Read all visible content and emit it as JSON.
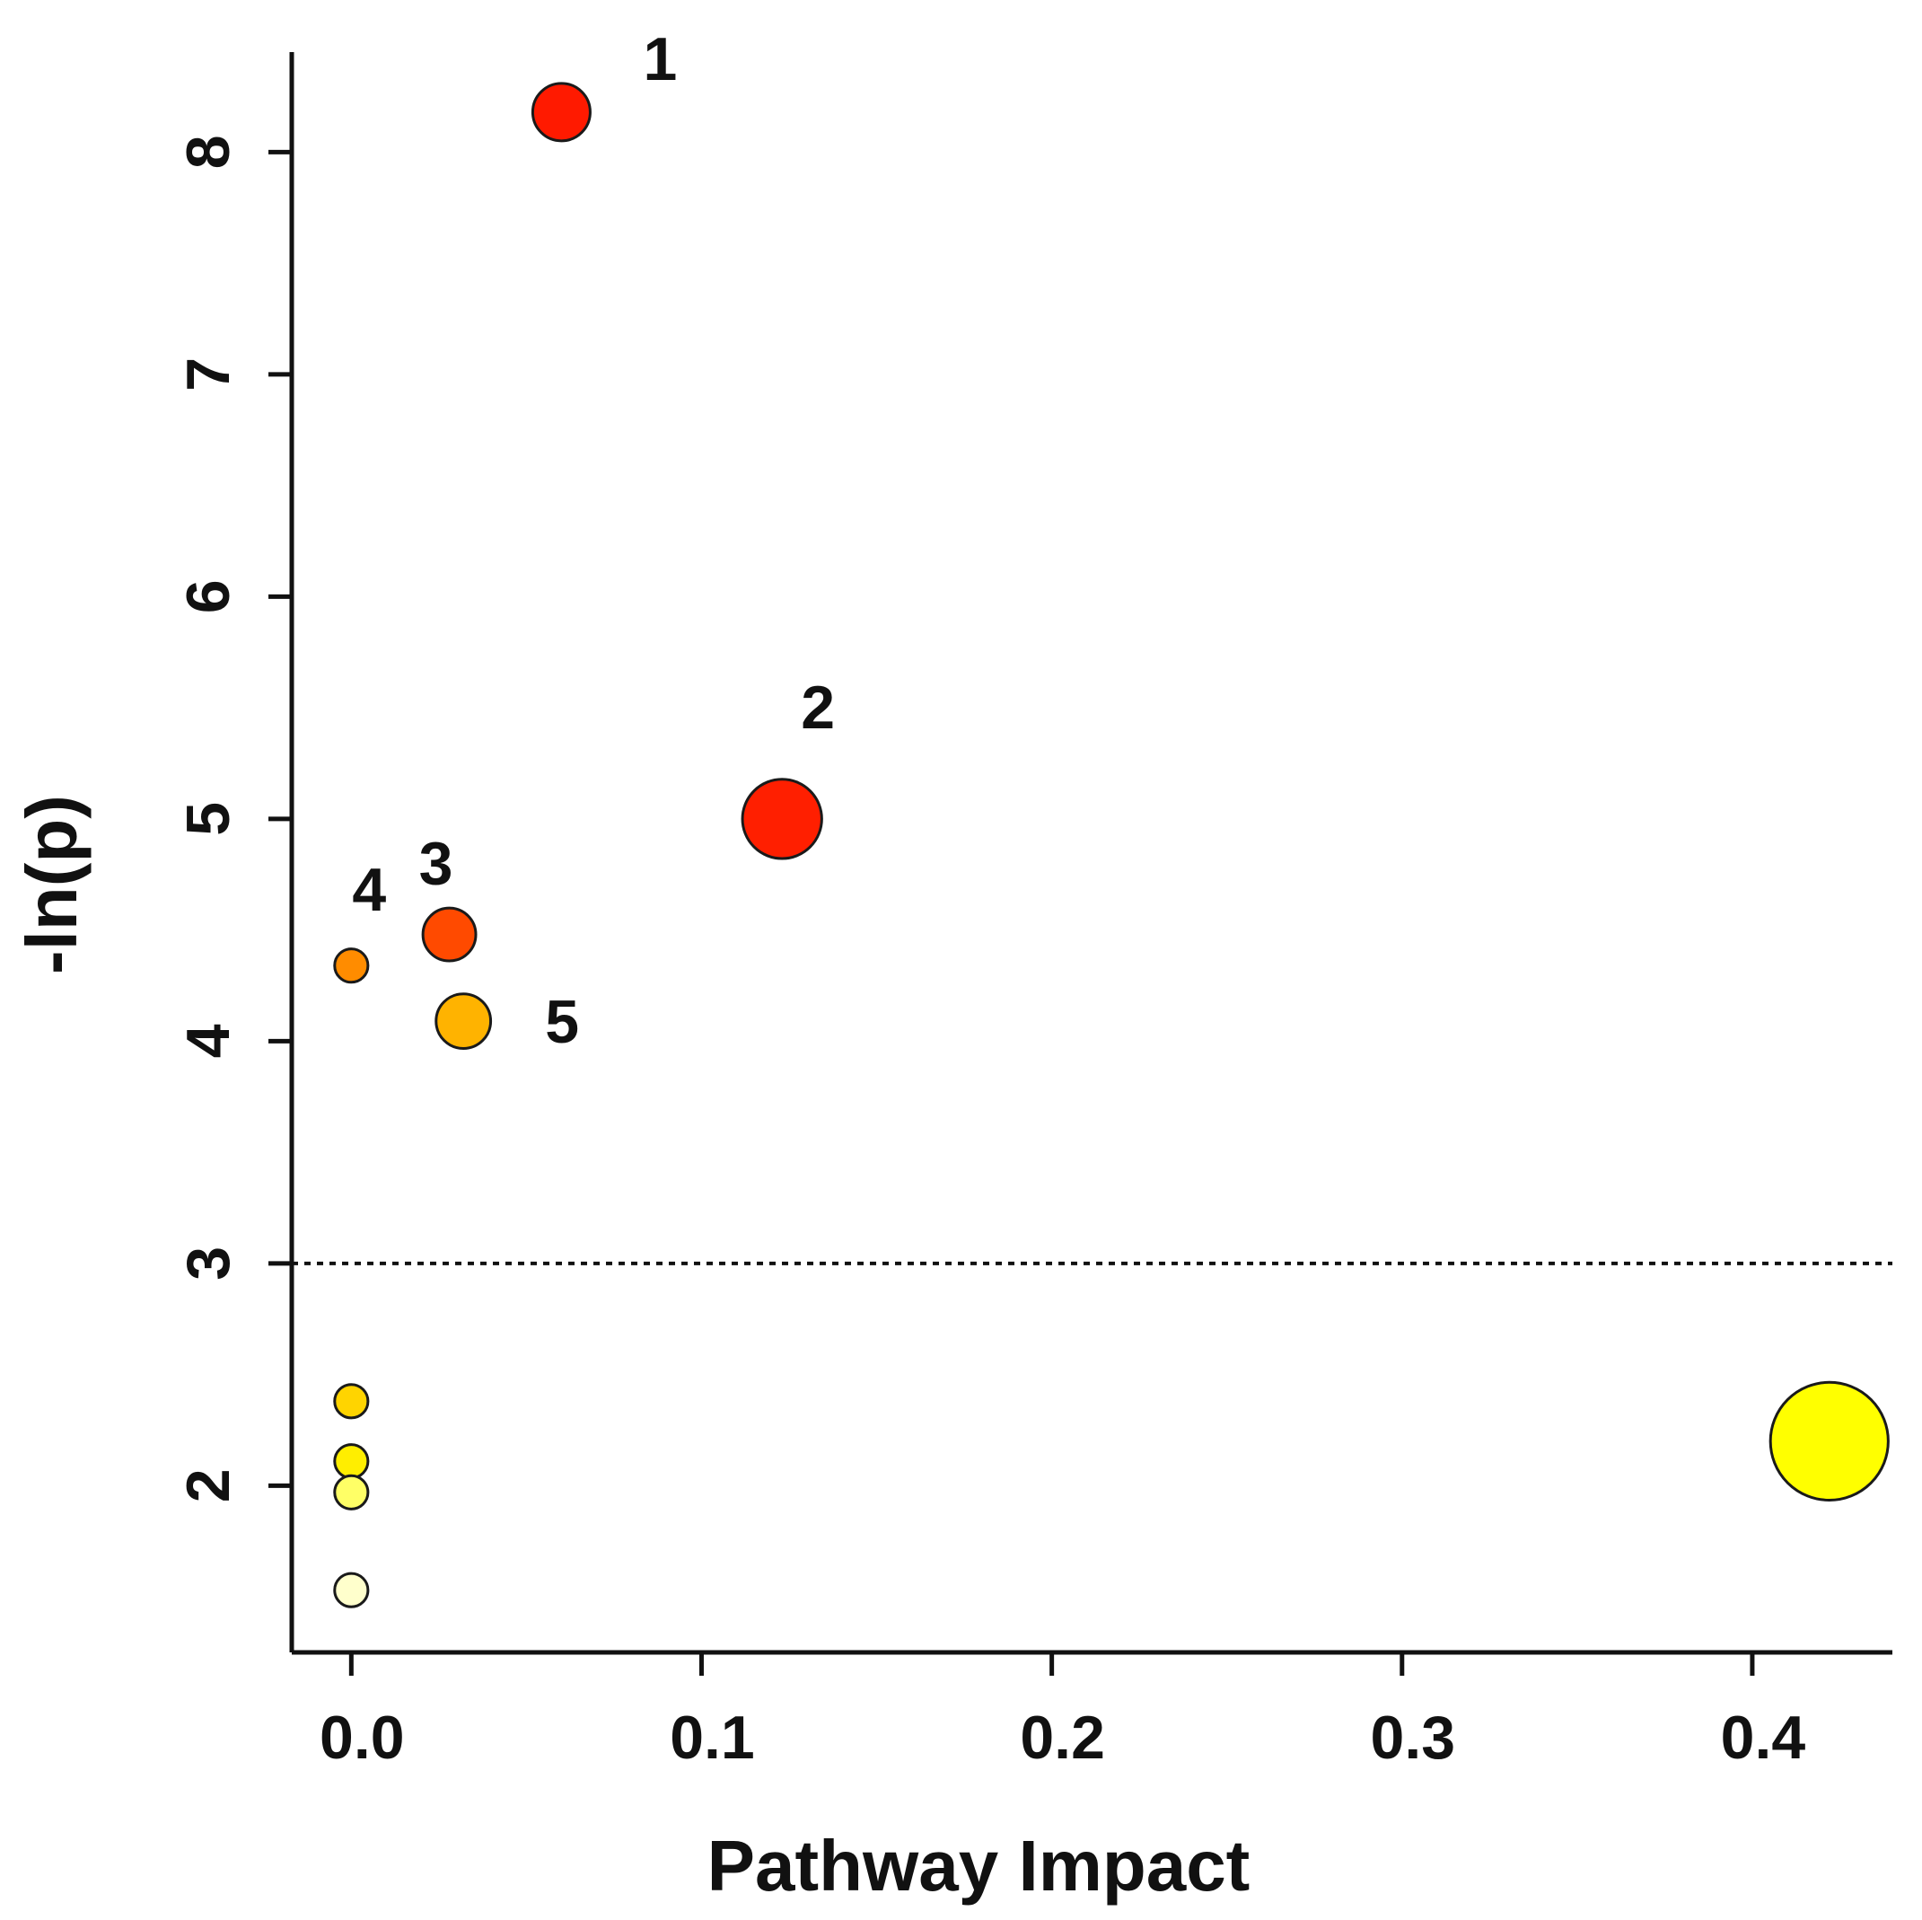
{
  "chart_data": {
    "type": "scatter",
    "title": "",
    "xlabel": "Pathway Impact",
    "ylabel": "-ln(p)",
    "xlim": [
      -0.017,
      0.44
    ],
    "ylim": [
      1.25,
      8.45
    ],
    "x_ticks": [
      0.0,
      0.1,
      0.2,
      0.3,
      0.4
    ],
    "x_tick_labels": [
      "0.0",
      "0.1",
      "0.2",
      "0.3",
      "0.4"
    ],
    "y_ticks": [
      2,
      3,
      4,
      5,
      6,
      7,
      8
    ],
    "y_tick_labels": [
      "2",
      "3",
      "4",
      "5",
      "6",
      "7",
      "8"
    ],
    "threshold": {
      "y": 3.0,
      "style": "dotted"
    },
    "grid": false,
    "legend": "none",
    "encoding": {
      "size": "pathway impact",
      "color": "-ln(p), yellow (low) to red (high)"
    },
    "points": [
      {
        "label": "1",
        "x": 0.06,
        "y": 8.18,
        "color": "#ff1a00",
        "size": 1.0
      },
      {
        "label": "2",
        "x": 0.123,
        "y": 5.0,
        "color": "#ff1f00",
        "size": 1.38
      },
      {
        "label": "3",
        "x": 0.028,
        "y": 4.48,
        "color": "#ff4a00",
        "size": 0.92
      },
      {
        "label": "4",
        "x": 0.0,
        "y": 4.34,
        "color": "#ff8c00",
        "size": 0.58
      },
      {
        "label": "5",
        "x": 0.032,
        "y": 4.09,
        "color": "#ffb300",
        "size": 0.95
      },
      {
        "label": "",
        "x": 0.0,
        "y": 2.38,
        "color": "#ffd400",
        "size": 0.58
      },
      {
        "label": "",
        "x": 0.0,
        "y": 2.11,
        "color": "#ffee00",
        "size": 0.58
      },
      {
        "label": "",
        "x": 0.0,
        "y": 1.97,
        "color": "#ffff66",
        "size": 0.58
      },
      {
        "label": "",
        "x": 0.0,
        "y": 1.53,
        "color": "#ffffcc",
        "size": 0.58
      },
      {
        "label": "",
        "x": 0.422,
        "y": 2.2,
        "color": "#ffff00",
        "size": 2.05
      }
    ]
  }
}
